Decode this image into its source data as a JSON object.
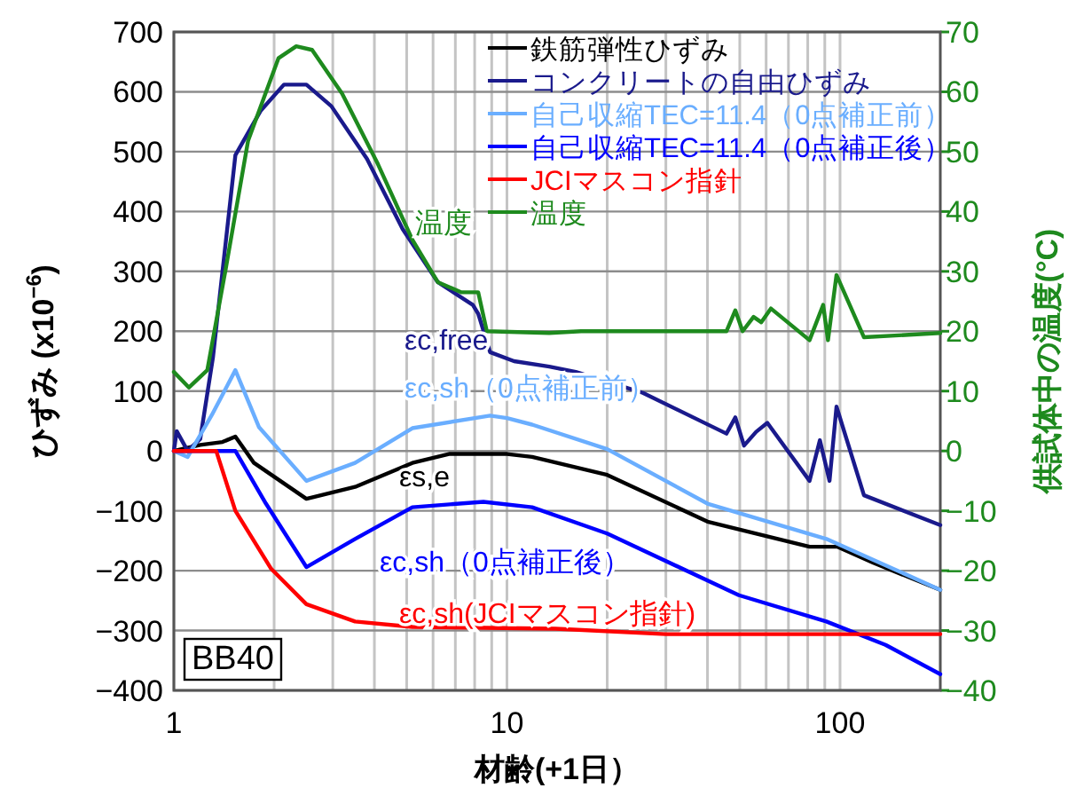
{
  "chart_data": {
    "type": "line",
    "log": "x",
    "xlabel": "材齢(+1日）",
    "ylabel": "ひずみ (x10$^{−6}$)",
    "y2label": "供試体中の温度(°C)",
    "xlim": [
      1,
      200
    ],
    "xticks": [
      1,
      {
        "value": 2,
        "label": null
      },
      {
        "value": 3,
        "label": null
      },
      {
        "value": 4,
        "label": null
      },
      {
        "value": 5,
        "label": null
      },
      {
        "value": 6,
        "label": null
      },
      {
        "value": 7,
        "label": null
      },
      {
        "value": 8,
        "label": null
      },
      {
        "value": 9,
        "label": null
      },
      10,
      {
        "value": 20,
        "label": null
      },
      {
        "value": 30,
        "label": null
      },
      {
        "value": 40,
        "label": null
      },
      {
        "value": 50,
        "label": null
      },
      {
        "value": 60,
        "label": null
      },
      {
        "value": 70,
        "label": null
      },
      {
        "value": 80,
        "label": null
      },
      {
        "value": 90,
        "label": null
      },
      100
    ],
    "ylim": [
      -400,
      700
    ],
    "yticks": [
      -400,
      -300,
      -200,
      -100,
      0,
      100,
      200,
      300,
      400,
      500,
      600,
      700
    ],
    "y2lim": [
      -40,
      70
    ],
    "y2ticks": [
      -40,
      -30,
      -20,
      -10,
      0,
      10,
      20,
      30,
      40,
      50,
      60,
      70
    ],
    "grid": true,
    "legend": "top right",
    "series": [
      {
        "name": "鉄筋弾性ひずみ",
        "color": "#000000",
        "x": [
          1,
          1.2,
          1.4,
          1.53,
          1.74,
          2.5,
          3.5,
          5.2,
          6.7,
          10,
          11.9,
          20,
          40,
          81,
          98,
          126,
          200
        ],
        "values": [
          0,
          10,
          15,
          24,
          -20,
          -80,
          -60,
          -20,
          -5,
          -5,
          -10,
          -40,
          -118,
          -160,
          -160,
          -187,
          -232
        ]
      },
      {
        "name": "コンクリートの自由ひずみ",
        "color": "#1a1a8c",
        "x": [
          1,
          1.02,
          1.1,
          1.2,
          1.31,
          1.53,
          1.82,
          2.14,
          2.5,
          2.97,
          3.8,
          4.86,
          6.2,
          7.9,
          8.2,
          8.9,
          10.5,
          13.4,
          16.1,
          22.7,
          25.6,
          45.6,
          48.5,
          51.5,
          56,
          60.5,
          81,
          87,
          93,
          97.6,
          118,
          200
        ],
        "values": [
          0,
          33,
          0,
          20,
          156,
          494,
          568,
          612,
          612,
          576,
          488,
          371,
          282,
          244,
          229,
          165,
          150,
          141,
          132,
          106,
          97,
          29,
          56,
          9,
          32,
          47,
          -50,
          18,
          -50,
          74,
          -74,
          -124
        ]
      },
      {
        "name": "自己収縮TEC=11.4（0点補正前）",
        "color": "#6aaeff",
        "x": [
          1,
          1.1,
          1.3,
          1.53,
          1.8,
          2.5,
          3.5,
          5.2,
          8.9,
          10,
          11.9,
          20,
          40,
          91,
          126,
          200
        ],
        "values": [
          0,
          -10,
          60,
          135,
          40,
          -50,
          -20,
          38,
          59,
          55,
          44,
          3,
          -88,
          -147,
          -182,
          -232
        ]
      },
      {
        "name": "自己収縮TEC=11.4（0点補正後）",
        "color": "#0000ff",
        "x": [
          1,
          1.53,
          1.89,
          2.5,
          3.5,
          5.2,
          8.5,
          11.9,
          20,
          49.7,
          91,
          137,
          200
        ],
        "values": [
          0,
          0,
          -88,
          -194,
          -147,
          -94,
          -85,
          -94,
          -138,
          -241,
          -285,
          -324,
          -373
        ]
      },
      {
        "name": "JCIマスコン指針",
        "color": "#ff0000",
        "x": [
          1,
          1.34,
          1.53,
          1.96,
          2.5,
          3.5,
          5.2,
          14,
          30,
          200
        ],
        "values": [
          0,
          0,
          -100,
          -197,
          -256,
          -285,
          -294,
          -297,
          -306,
          -306
        ]
      },
      {
        "name": "温度",
        "color": "#1e8a1e",
        "axis": "y2",
        "x": [
          1,
          1.11,
          1.26,
          1.43,
          1.67,
          2.06,
          2.33,
          2.6,
          3.2,
          4.1,
          5.2,
          6.2,
          7.3,
          8.2,
          8.7,
          13.4,
          16.7,
          41,
          45.6,
          48.5,
          51,
          55,
          58,
          62,
          81,
          89,
          92,
          97.6,
          118,
          200
        ],
        "values": [
          13.2,
          10.6,
          13.5,
          30.3,
          51.8,
          65.6,
          67.6,
          67,
          59.7,
          47.9,
          35.3,
          28.2,
          26.5,
          26.5,
          20,
          19.7,
          20,
          20,
          20,
          23.5,
          20,
          22.4,
          21.5,
          23.8,
          18.5,
          24.4,
          18.5,
          29.4,
          19,
          19.7
        ]
      }
    ],
    "annotations": [
      "温度",
      "εc,free",
      "εc,sh（0点補正前）",
      "εs,e",
      "εc,sh（0点補正後）",
      "εc,sh(JCIマスコン指針)",
      "BB40"
    ]
  }
}
